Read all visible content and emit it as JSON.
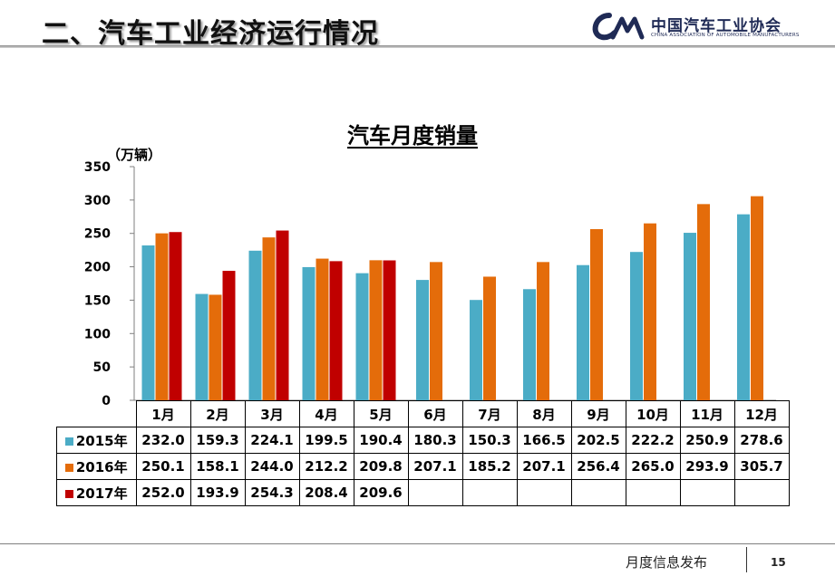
{
  "header": {
    "title": "二、汽车工业经济运行情况",
    "logo_text": "中国汽车工业协会",
    "logo_subtext": "CHINA ASSOCIATION OF AUTOMOBILE MANUFACTURERS"
  },
  "footer": {
    "label": "月度信息发布",
    "page_number": "15"
  },
  "colors": {
    "2015年": "#4bacc6",
    "2016年": "#e46c0a",
    "2017年": "#c00000",
    "logo": "#1f2a55"
  },
  "chart_data": {
    "type": "bar",
    "title": "汽车月度销量",
    "ylabel": "（万辆）",
    "ylim": [
      0,
      350
    ],
    "yticks": [
      0,
      50,
      100,
      150,
      200,
      250,
      300,
      350
    ],
    "categories": [
      "1月",
      "2月",
      "3月",
      "4月",
      "5月",
      "6月",
      "7月",
      "8月",
      "9月",
      "10月",
      "11月",
      "12月"
    ],
    "series": [
      {
        "name": "2015年",
        "values": [
          232.0,
          159.3,
          224.1,
          199.5,
          190.4,
          180.3,
          150.3,
          166.5,
          202.5,
          222.2,
          250.9,
          278.6
        ]
      },
      {
        "name": "2016年",
        "values": [
          250.1,
          158.1,
          244.0,
          212.2,
          209.8,
          207.1,
          185.2,
          207.1,
          256.4,
          265.0,
          293.9,
          305.7
        ]
      },
      {
        "name": "2017年",
        "values": [
          252.0,
          193.9,
          254.3,
          208.4,
          209.6,
          null,
          null,
          null,
          null,
          null,
          null,
          null
        ]
      }
    ],
    "data_table": [
      [
        "232.0",
        "159.3",
        "224.1",
        "199.5",
        "190.4",
        "180.3",
        "150.3",
        "166.5",
        "202.5",
        "222.2",
        "250.9",
        "278.6"
      ],
      [
        "250.1",
        "158.1",
        "244.0",
        "212.2",
        "209.8",
        "207.1",
        "185.2",
        "207.1",
        "256.4",
        "265.0",
        "293.9",
        "305.7"
      ],
      [
        "252.0",
        "193.9",
        "254.3",
        "208.4",
        "209.6",
        "",
        "",
        "",
        "",
        "",
        "",
        ""
      ]
    ],
    "legend": "data-table",
    "grid": false
  }
}
